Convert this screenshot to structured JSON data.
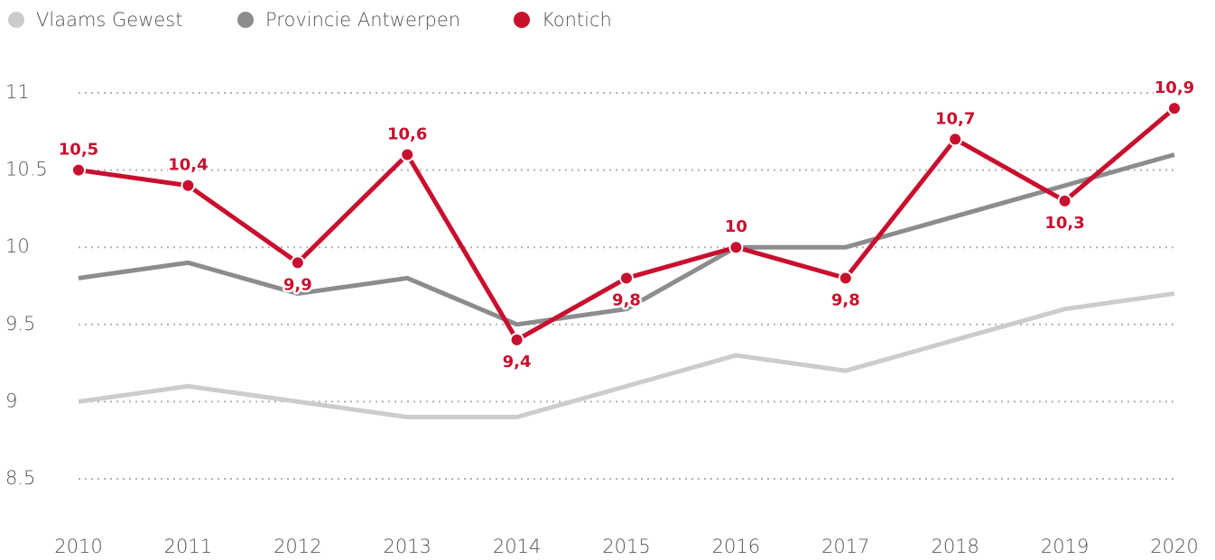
{
  "chart_data": {
    "type": "line",
    "categories": [
      "2010",
      "2011",
      "2012",
      "2013",
      "2014",
      "2015",
      "2016",
      "2017",
      "2018",
      "2019",
      "2020"
    ],
    "series": [
      {
        "name": "Vlaams Gewest",
        "color": "#cccccc",
        "values": [
          9.0,
          9.1,
          9.0,
          8.9,
          8.9,
          9.1,
          9.3,
          9.2,
          9.4,
          9.6,
          9.7
        ]
      },
      {
        "name": "Provincie Antwerpen",
        "color": "#8b8c8e",
        "values": [
          9.8,
          9.9,
          9.7,
          9.8,
          9.5,
          9.6,
          10.0,
          10.0,
          10.2,
          10.4,
          10.6
        ]
      },
      {
        "name": "Kontich",
        "color": "#c8102e",
        "values": [
          10.5,
          10.4,
          9.9,
          10.6,
          9.4,
          9.8,
          10.0,
          9.8,
          10.7,
          10.3,
          10.9
        ],
        "value_labels": [
          "10,5",
          "10,4",
          "9,9",
          "10,6",
          "9,4",
          "9,8",
          "10",
          "9,8",
          "10,7",
          "10,3",
          "10,9"
        ]
      }
    ],
    "ylim": [
      8.5,
      11
    ],
    "yticks": [
      8.5,
      9,
      9.5,
      10,
      10.5,
      11
    ],
    "grid": true,
    "legend": "top-left"
  }
}
